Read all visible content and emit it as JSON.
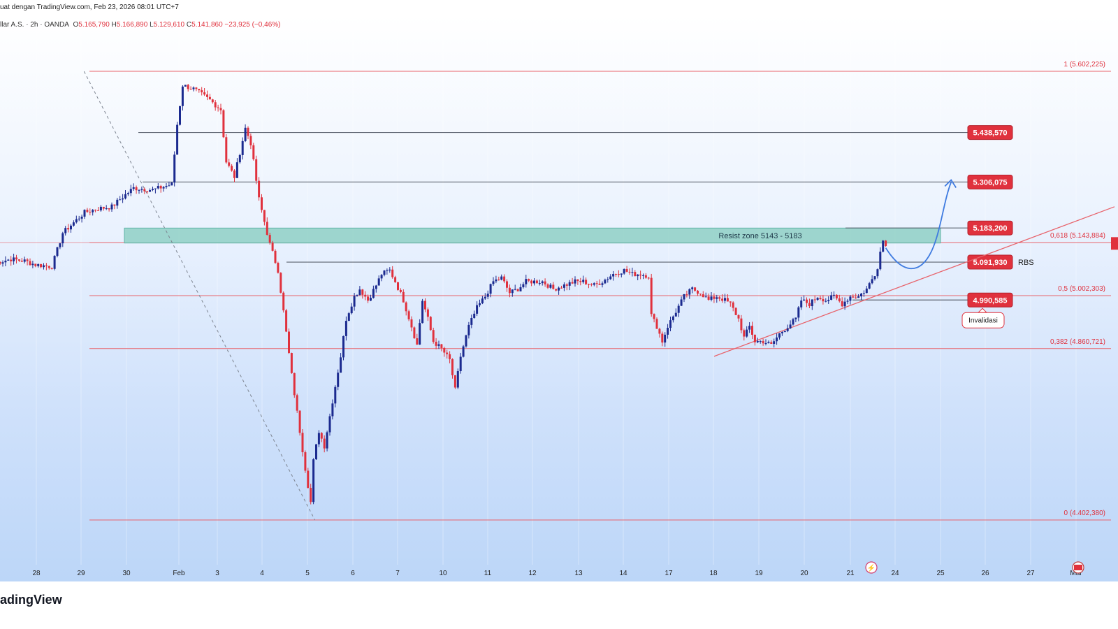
{
  "header": {
    "title": "uat dengan TradingView.com, Feb 23, 2026 08:01 UTC+7",
    "symbol": "llar A.S. · 2h · OANDA",
    "open_label": "O",
    "open": "5.165,790",
    "high_label": "H",
    "high": "5.166,890",
    "low_label": "L",
    "low": "5.129,610",
    "close_label": "C",
    "close": "5.141,860",
    "change": "−23,925 (−0,46%)"
  },
  "footer": {
    "brand": "adingView"
  },
  "chart_data": {
    "type": "candlestick",
    "x_labels": [
      "28",
      "29",
      "30",
      "Feb",
      "3",
      "4",
      "5",
      "6",
      "7",
      "10",
      "11",
      "12",
      "13",
      "14",
      "17",
      "18",
      "19",
      "20",
      "21",
      "24",
      "25",
      "26",
      "27",
      "Mar"
    ],
    "ylim": [
      4280,
      5680
    ],
    "fib_levels": [
      {
        "label": "1 (5.602,225)",
        "value": 5602.225
      },
      {
        "label": "0,618 (5.143,884)",
        "value": 5143.884
      },
      {
        "label": "0,5 (5.002,303)",
        "value": 5002.303
      },
      {
        "label": "0,382 (4.860,721)",
        "value": 4860.721
      },
      {
        "label": "0 (4.402,380)",
        "value": 4402.38
      }
    ],
    "price_levels": [
      {
        "label": "5.438,570",
        "value": 5438.57
      },
      {
        "label": "5.306,075",
        "value": 5306.075
      },
      {
        "label": "5.183,200",
        "value": 5183.2
      },
      {
        "label": "5.091,930",
        "value": 5091.93
      },
      {
        "label": "4.990,585",
        "value": 4990.585
      }
    ],
    "zone": {
      "label": "Resist zone 5143 - 5183",
      "low": 5143,
      "high": 5183
    },
    "rbs_label": "RBS",
    "invalid_label": "Invalidasi",
    "colors": {
      "up": "#1b2a8f",
      "down": "#e0313d",
      "fib": "#e8636b",
      "zone": "#8fd0c5",
      "level_box": "#e0313d",
      "projection": "#3f7be0",
      "trend": "#e8636b"
    },
    "waypoints": [
      [
        -3,
        5090
      ],
      [
        3,
        5100
      ],
      [
        8,
        5095
      ],
      [
        12,
        5085
      ],
      [
        18,
        5080
      ],
      [
        22,
        5170
      ],
      [
        30,
        5225
      ],
      [
        35,
        5235
      ],
      [
        40,
        5240
      ],
      [
        43,
        5260
      ],
      [
        48,
        5290
      ],
      [
        55,
        5285
      ],
      [
        62,
        5300
      ],
      [
        64,
        5460
      ],
      [
        66,
        5565
      ],
      [
        70,
        5555
      ],
      [
        76,
        5525
      ],
      [
        80,
        5500
      ],
      [
        82,
        5360
      ],
      [
        85,
        5320
      ],
      [
        89,
        5450
      ],
      [
        91,
        5410
      ],
      [
        94,
        5260
      ],
      [
        98,
        5140
      ],
      [
        101,
        5070
      ],
      [
        103,
        4960
      ],
      [
        106,
        4790
      ],
      [
        109,
        4640
      ],
      [
        111,
        4540
      ],
      [
        113,
        4450
      ],
      [
        114,
        4560
      ],
      [
        116,
        4640
      ],
      [
        118,
        4600
      ],
      [
        121,
        4720
      ],
      [
        124,
        4840
      ],
      [
        126,
        4940
      ],
      [
        129,
        5000
      ],
      [
        131,
        5020
      ],
      [
        134,
        4990
      ],
      [
        137,
        5030
      ],
      [
        139,
        5060
      ],
      [
        142,
        5070
      ],
      [
        144,
        5040
      ],
      [
        147,
        4990
      ],
      [
        150,
        4920
      ],
      [
        152,
        4870
      ],
      [
        154,
        4990
      ],
      [
        156,
        4940
      ],
      [
        158,
        4880
      ],
      [
        161,
        4860
      ],
      [
        164,
        4830
      ],
      [
        166,
        4750
      ],
      [
        168,
        4840
      ],
      [
        171,
        4920
      ],
      [
        174,
        4970
      ],
      [
        177,
        5000
      ],
      [
        180,
        5040
      ],
      [
        183,
        5050
      ],
      [
        186,
        5010
      ],
      [
        189,
        5020
      ],
      [
        192,
        5040
      ],
      [
        195,
        5040
      ],
      [
        198,
        5040
      ],
      [
        202,
        5020
      ],
      [
        206,
        5030
      ],
      [
        210,
        5040
      ],
      [
        213,
        5040
      ],
      [
        217,
        5030
      ],
      [
        220,
        5040
      ],
      [
        224,
        5060
      ],
      [
        228,
        5070
      ],
      [
        231,
        5060
      ],
      [
        234,
        5060
      ],
      [
        237,
        5055
      ],
      [
        238,
        4950
      ],
      [
        240,
        4920
      ],
      [
        242,
        4880
      ],
      [
        244,
        4920
      ],
      [
        247,
        4960
      ],
      [
        250,
        5000
      ],
      [
        253,
        5020
      ],
      [
        256,
        5010
      ],
      [
        259,
        4990
      ],
      [
        262,
        5000
      ],
      [
        265,
        4990
      ],
      [
        267,
        4980
      ],
      [
        270,
        4940
      ],
      [
        272,
        4890
      ],
      [
        274,
        4920
      ],
      [
        276,
        4880
      ],
      [
        279,
        4880
      ],
      [
        282,
        4870
      ],
      [
        285,
        4900
      ],
      [
        288,
        4920
      ],
      [
        291,
        4940
      ],
      [
        293,
        4990
      ],
      [
        296,
        4980
      ],
      [
        299,
        5000
      ],
      [
        302,
        4990
      ],
      [
        305,
        5000
      ],
      [
        308,
        4980
      ],
      [
        311,
        5000
      ],
      [
        314,
        5000
      ],
      [
        317,
        5020
      ],
      [
        320,
        5060
      ],
      [
        321,
        5080
      ],
      [
        322,
        5120
      ],
      [
        323,
        5150
      ],
      [
        324,
        5142
      ]
    ],
    "projection": [
      [
        324,
        5130
      ],
      [
        330,
        5090
      ],
      [
        336,
        5080
      ],
      [
        342,
        5130
      ],
      [
        346,
        5230
      ],
      [
        348,
        5306
      ]
    ],
    "trendline": [
      [
        270,
        4840
      ],
      [
        420,
        5240
      ]
    ],
    "diagonal": [
      [
        17,
        5602
      ],
      [
        113,
        4402
      ]
    ]
  }
}
